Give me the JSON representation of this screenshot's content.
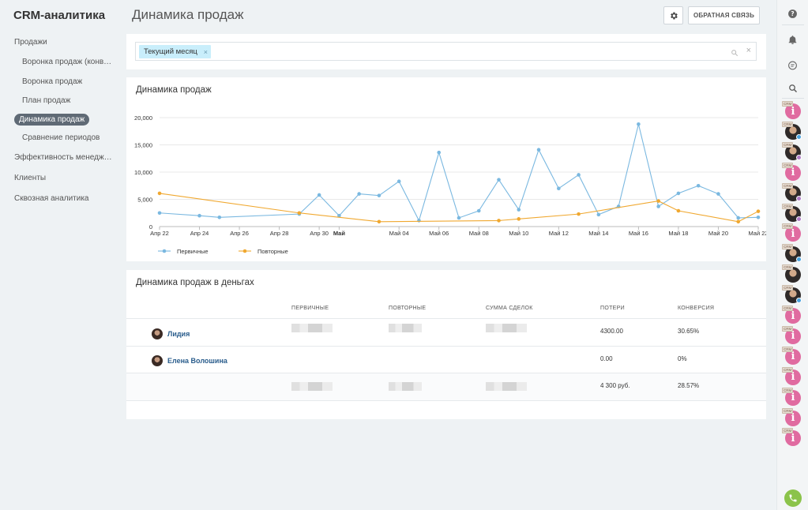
{
  "app": {
    "title": "CRM-аналитика"
  },
  "sidebar": {
    "items": [
      {
        "label": "Продажи"
      },
      {
        "label": "Воронка продаж (конверсия)"
      },
      {
        "label": "Воронка продаж"
      },
      {
        "label": "План продаж"
      },
      {
        "label": "Динамика продаж"
      },
      {
        "label": "Сравнение периодов"
      },
      {
        "label": "Эффективность менеджеров"
      },
      {
        "label": "Клиенты"
      },
      {
        "label": "Сквозная аналитика"
      }
    ]
  },
  "header": {
    "title": "Динамика продаж",
    "feedback_label": "ОБРАТНАЯ СВЯЗЬ",
    "settings_icon": "gear-icon"
  },
  "filter": {
    "chip_label": "Текущий месяц",
    "chip_remove": "×",
    "clear": "×"
  },
  "chart_panel": {
    "title": "Динамика продаж"
  },
  "chart_data": {
    "type": "line",
    "title": "Динамика продаж",
    "xlabel": "",
    "ylabel": "",
    "ylim": [
      0,
      20000
    ],
    "yticks": [
      "0",
      "5,000",
      "10,000",
      "15,000",
      "20,000"
    ],
    "xticks": [
      "Апр 22",
      "Апр 24",
      "Апр 26",
      "Апр 28",
      "Апр 30",
      "Май",
      "Май 04",
      "Май 06",
      "Май 08",
      "Май 10",
      "Май 12",
      "Май 14",
      "Май 16",
      "Май 18",
      "Май 20",
      "Май 22"
    ],
    "grid": true,
    "legend": "bottom-left",
    "series": [
      {
        "name": "Первичные",
        "color": "#7ab8e0",
        "points": [
          [
            "Апр 22",
            2500
          ],
          [
            "Апр 24",
            2000
          ],
          [
            "Апр 25",
            1700
          ],
          [
            "Апр 29",
            2300
          ],
          [
            "Апр 30",
            5800
          ],
          [
            "Май 01",
            2000
          ],
          [
            "Май 02",
            6000
          ],
          [
            "Май 03",
            5700
          ],
          [
            "Май 04",
            8300
          ],
          [
            "Май 05",
            1100
          ],
          [
            "Май 06",
            13600
          ],
          [
            "Май 07",
            1600
          ],
          [
            "Май 08",
            2900
          ],
          [
            "Май 09",
            8600
          ],
          [
            "Май 10",
            3100
          ],
          [
            "Май 11",
            14100
          ],
          [
            "Май 12",
            7000
          ],
          [
            "Май 13",
            9500
          ],
          [
            "Май 14",
            2200
          ],
          [
            "Май 15",
            3700
          ],
          [
            "Май 16",
            18800
          ],
          [
            "Май 17",
            3700
          ],
          [
            "Май 18",
            6100
          ],
          [
            "Май 19",
            7500
          ],
          [
            "Май 20",
            6000
          ],
          [
            "Май 21",
            1600
          ],
          [
            "Май 22",
            1700
          ]
        ]
      },
      {
        "name": "Повторные",
        "color": "#f0a830",
        "points": [
          [
            "Апр 22",
            6100
          ],
          [
            "Апр 29",
            2500
          ],
          [
            "Май 03",
            900
          ],
          [
            "Май 09",
            1100
          ],
          [
            "Май 10",
            1400
          ],
          [
            "Май 13",
            2300
          ],
          [
            "Май 17",
            4700
          ],
          [
            "Май 18",
            2900
          ],
          [
            "Май 21",
            900
          ],
          [
            "Май 22",
            2800
          ]
        ]
      }
    ]
  },
  "money_table": {
    "title": "Динамика продаж в деньгах",
    "columns": [
      "ПЕРВИЧНЫЕ",
      "ПОВТОРНЫЕ",
      "СУММА СДЕЛОК",
      "ПОТЕРИ",
      "КОНВЕРСИЯ"
    ],
    "rows": [
      {
        "name": "Лидия",
        "losses": "4300.00",
        "conversion": "30.65%"
      },
      {
        "name": "Елена Волошина",
        "losses": "0.00",
        "conversion": "0%"
      }
    ],
    "total": {
      "losses": "4 300 руб.",
      "conversion": "28.57%"
    }
  },
  "right_bar": {
    "icons": [
      "help-icon",
      "bell-icon",
      "chat-icon",
      "search-icon"
    ],
    "badge_text": "CRM",
    "info_glyph": "i",
    "call_icon": "phone-icon"
  }
}
